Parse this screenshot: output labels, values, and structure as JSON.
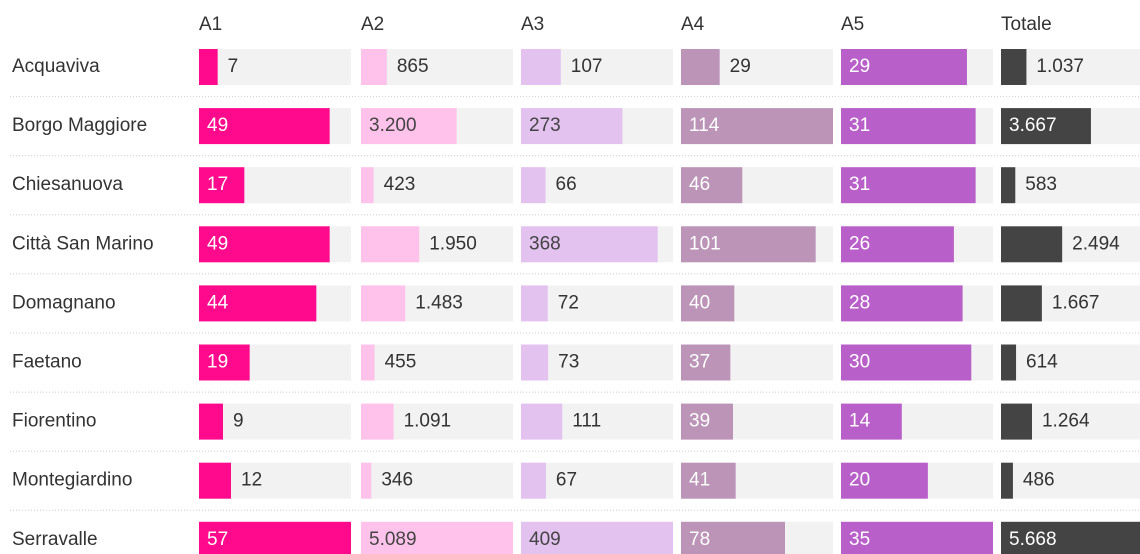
{
  "table": {
    "columns": [
      "A1",
      "A2",
      "A3",
      "A4",
      "A5",
      "Totale"
    ],
    "colors": [
      "#ff0a8c",
      "#ffc2eb",
      "#e3c2ef",
      "#bb94b8",
      "#b95fc9",
      "#444444"
    ],
    "rows": [
      {
        "name": "Acquaviva",
        "values": [
          7,
          865,
          107,
          29,
          29,
          1037
        ],
        "value_labels": [
          "7",
          "865",
          "107",
          "29",
          "29",
          "1.037"
        ]
      },
      {
        "name": "Borgo Maggiore",
        "values": [
          49,
          3200,
          273,
          114,
          31,
          3667
        ],
        "value_labels": [
          "49",
          "3.200",
          "273",
          "114",
          "31",
          "3.667"
        ]
      },
      {
        "name": "Chiesanuova",
        "values": [
          17,
          423,
          66,
          46,
          31,
          583
        ],
        "value_labels": [
          "17",
          "423",
          "66",
          "46",
          "31",
          "583"
        ]
      },
      {
        "name": "Città San Marino",
        "values": [
          49,
          1950,
          368,
          101,
          26,
          2494
        ],
        "value_labels": [
          "49",
          "1.950",
          "368",
          "101",
          "26",
          "2.494"
        ]
      },
      {
        "name": "Domagnano",
        "values": [
          44,
          1483,
          72,
          40,
          28,
          1667
        ],
        "value_labels": [
          "44",
          "1.483",
          "72",
          "40",
          "28",
          "1.667"
        ]
      },
      {
        "name": "Faetano",
        "values": [
          19,
          455,
          73,
          37,
          30,
          614
        ],
        "value_labels": [
          "19",
          "455",
          "73",
          "37",
          "30",
          "614"
        ]
      },
      {
        "name": "Fiorentino",
        "values": [
          9,
          1091,
          111,
          39,
          14,
          1264
        ],
        "value_labels": [
          "9",
          "1.091",
          "111",
          "39",
          "14",
          "1.264"
        ]
      },
      {
        "name": "Montegiardino",
        "values": [
          12,
          346,
          67,
          41,
          20,
          486
        ],
        "value_labels": [
          "12",
          "346",
          "67",
          "41",
          "20",
          "486"
        ]
      },
      {
        "name": "Serravalle",
        "values": [
          57,
          5089,
          409,
          78,
          35,
          5668
        ],
        "value_labels": [
          "57",
          "5.089",
          "409",
          "78",
          "35",
          "5.668"
        ]
      }
    ]
  }
}
